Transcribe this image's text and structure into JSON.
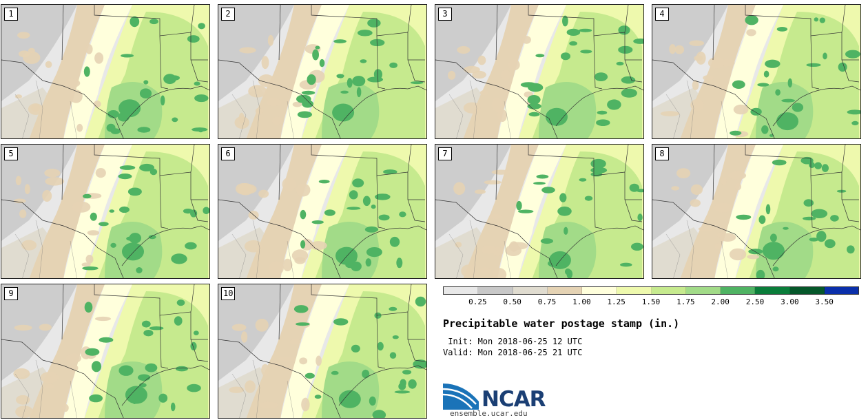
{
  "panels": [
    {
      "label": "1"
    },
    {
      "label": "2"
    },
    {
      "label": "3"
    },
    {
      "label": "4"
    },
    {
      "label": "5"
    },
    {
      "label": "6"
    },
    {
      "label": "7"
    },
    {
      "label": "8"
    },
    {
      "label": "9"
    },
    {
      "label": "10"
    }
  ],
  "colorbar": {
    "colors": [
      "#e8e8e8",
      "#c8c8c8",
      "#e0dcd0",
      "#e5d3b4",
      "#ffffdc",
      "#eef9ad",
      "#c6ea8e",
      "#a2db88",
      "#4fb363",
      "#0a7d3a",
      "#05572a",
      "#0a2faa"
    ],
    "ticks": [
      "0.25",
      "0.50",
      "0.75",
      "1.00",
      "1.25",
      "1.50",
      "1.75",
      "2.00",
      "2.50",
      "3.00",
      "3.50"
    ]
  },
  "title": "Precipitable water postage stamp (in.)",
  "init": " Init: Mon 2018-06-25 12 UTC",
  "valid": "Valid: Mon 2018-06-25 21 UTC",
  "logo": {
    "name": "NCAR",
    "site": "ensemble.ucar.edu",
    "color": "#1b3f74",
    "accent": "#1a73b8"
  }
}
